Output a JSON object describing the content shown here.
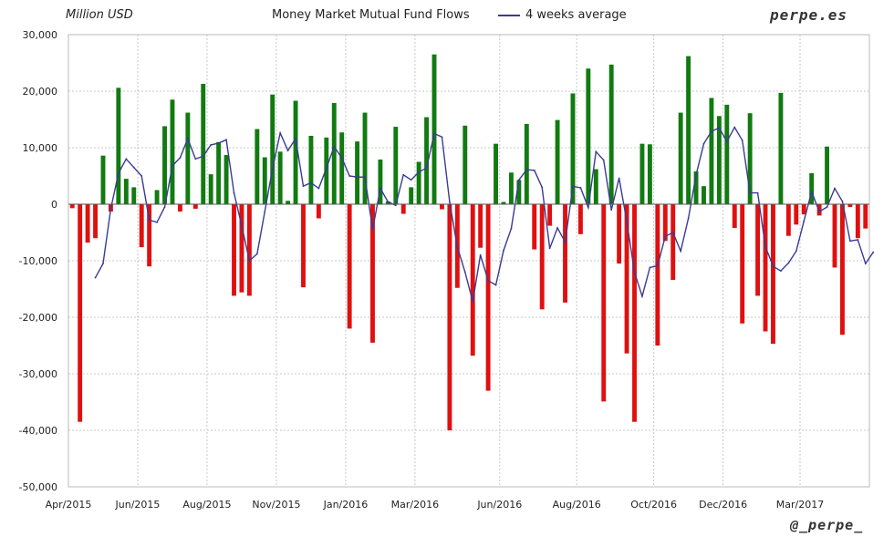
{
  "header": {
    "units_label": "Million USD",
    "title": "Money Market Mutual Fund Flows",
    "legend_label": "4 weeks average",
    "brand_top": "perpe.es",
    "brand_bottom": "@_perpe_"
  },
  "colors": {
    "positive_bar": "#117a11",
    "negative_bar": "#e01010",
    "average_line": "#3a3a96",
    "grid": "#c8c8c8"
  },
  "chart_data": {
    "type": "bar",
    "units": "Million USD",
    "ylim": [
      -50000,
      30000
    ],
    "y_ticks": [
      30000,
      20000,
      10000,
      0,
      -10000,
      -20000,
      -30000,
      -40000,
      -50000
    ],
    "y_tick_labels": [
      "30,000",
      "20,000",
      "10,000",
      "0",
      "-10,000",
      "-20,000",
      "-30,000",
      "-40,000",
      "-50,000"
    ],
    "x_ticks": [
      "Apr/2015",
      "Jun/2015",
      "Aug/2015",
      "Nov/2015",
      "Jan/2016",
      "Mar/2016",
      "Jun/2016",
      "Aug/2016",
      "Oct/2016",
      "Dec/2016",
      "Mar/2017"
    ],
    "x_tick_positions": [
      0,
      9,
      18,
      27,
      36,
      45,
      56,
      66,
      76,
      85,
      95
    ],
    "grid": true,
    "legend_position": "top",
    "series": [
      {
        "kind": "bar",
        "values": [
          -700,
          -38500,
          -6800,
          -6000,
          8600,
          -1300,
          20600,
          4500,
          3000,
          -7600,
          -11000,
          2500,
          13800,
          18500,
          -1300,
          16200,
          -800,
          21300,
          5300,
          11000,
          8700,
          -16200,
          -15600,
          -16200,
          13300,
          8300,
          19400,
          9300,
          600,
          18300,
          -14700,
          12100,
          -2500,
          11800,
          17900,
          12700,
          -22000,
          11100,
          16200,
          -24500,
          7900,
          500,
          13700,
          -1700,
          3000,
          7500,
          15400,
          26500,
          -900,
          -40000,
          -14800,
          13900,
          -26800,
          -7700,
          -33000,
          10700,
          400,
          5600,
          4300,
          14200,
          -8000,
          -18600,
          -3800,
          14900,
          -17400,
          19600,
          -5300,
          24000,
          6200,
          -34900,
          24700,
          -10500,
          -26400,
          -38500,
          10700,
          10600,
          -25000,
          -6500,
          -13400,
          16200,
          26200,
          5800,
          3200,
          18800,
          15600,
          17600,
          -4200,
          -21100,
          16100,
          -16200,
          -22500,
          -24700,
          19700,
          -5600,
          -3600,
          -1800,
          5500,
          -2000,
          10200,
          -11200,
          -23100,
          -500,
          -6000,
          -4300
        ]
      },
      {
        "kind": "line",
        "name": "4 weeks average",
        "start_index": 3,
        "values": [
          -13000,
          -10500,
          -800,
          5500,
          8000,
          6500,
          5000,
          -2800,
          -3200,
          -500,
          6800,
          8200,
          11600,
          8000,
          8500,
          10500,
          10800,
          11400,
          2000,
          -3800,
          -10000,
          -8800,
          -1300,
          6300,
          12600,
          9500,
          11600,
          3200,
          3800,
          2800,
          6400,
          10200,
          8200,
          5000,
          4800,
          4800,
          -4500,
          2800,
          400,
          -200,
          5200,
          4300,
          5700,
          6400,
          12500,
          11900,
          400,
          -7600,
          -12000,
          -17200,
          -9000,
          -13500,
          -14300,
          -8200,
          -4300,
          4300,
          6100,
          6000,
          3000,
          -7800,
          -4200,
          -6700,
          3200,
          2900,
          -600,
          9300,
          7800,
          -1000,
          4600,
          -3000,
          -12000,
          -16300,
          -11200,
          -10900,
          -5700,
          -5000,
          -8300,
          -2500,
          5200,
          10700,
          12900,
          13500,
          11100,
          13600,
          11300,
          2000,
          2000,
          -7500,
          -11000,
          -11800,
          -10400,
          -8300,
          -3000,
          2200,
          -1300,
          -500,
          2800,
          500,
          -6500,
          -6300,
          -10500,
          -8500
        ]
      }
    ]
  }
}
